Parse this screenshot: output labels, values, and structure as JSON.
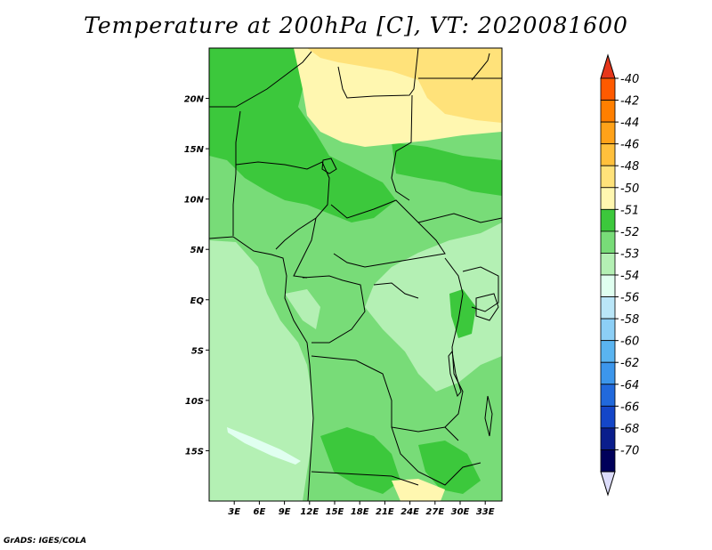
{
  "title": "Temperature at 200hPa [C], VT: 2020081600",
  "credit": "GrADS: IGES/COLA",
  "map": {
    "lon_range": [
      0,
      35
    ],
    "lat_range": [
      -20,
      25
    ],
    "lon_ticks": [
      {
        "lon": 3,
        "label": "3E"
      },
      {
        "lon": 6,
        "label": "6E"
      },
      {
        "lon": 9,
        "label": "9E"
      },
      {
        "lon": 12,
        "label": "12E"
      },
      {
        "lon": 15,
        "label": "15E"
      },
      {
        "lon": 18,
        "label": "18E"
      },
      {
        "lon": 21,
        "label": "21E"
      },
      {
        "lon": 24,
        "label": "24E"
      },
      {
        "lon": 27,
        "label": "27E"
      },
      {
        "lon": 30,
        "label": "30E"
      },
      {
        "lon": 33,
        "label": "33E"
      }
    ],
    "lat_ticks": [
      {
        "lat": 20,
        "label": "20N"
      },
      {
        "lat": 15,
        "label": "15N"
      },
      {
        "lat": 10,
        "label": "10N"
      },
      {
        "lat": 5,
        "label": "5N"
      },
      {
        "lat": 0,
        "label": "EQ"
      },
      {
        "lat": -5,
        "label": "5S"
      },
      {
        "lat": -10,
        "label": "10S"
      },
      {
        "lat": -15,
        "label": "15S"
      }
    ]
  },
  "colorbar": {
    "labels": [
      "-40",
      "-42",
      "-44",
      "-46",
      "-48",
      "-50",
      "-51",
      "-52",
      "-53",
      "-54",
      "-56",
      "-58",
      "-60",
      "-62",
      "-64",
      "-66",
      "-68",
      "-70"
    ],
    "colors": [
      "#e6361b",
      "#ff5a00",
      "#ff7f00",
      "#ffa219",
      "#ffc03c",
      "#ffe27a",
      "#fff7b0",
      "#3cc83c",
      "#78dc78",
      "#b4f0b4",
      "#e0fff0",
      "#bae6f8",
      "#8ccff6",
      "#5ab4f0",
      "#3c96eb",
      "#2169dc",
      "#1446c8",
      "#0a1e8c",
      "#00005a",
      "#dcdcfa"
    ]
  }
}
